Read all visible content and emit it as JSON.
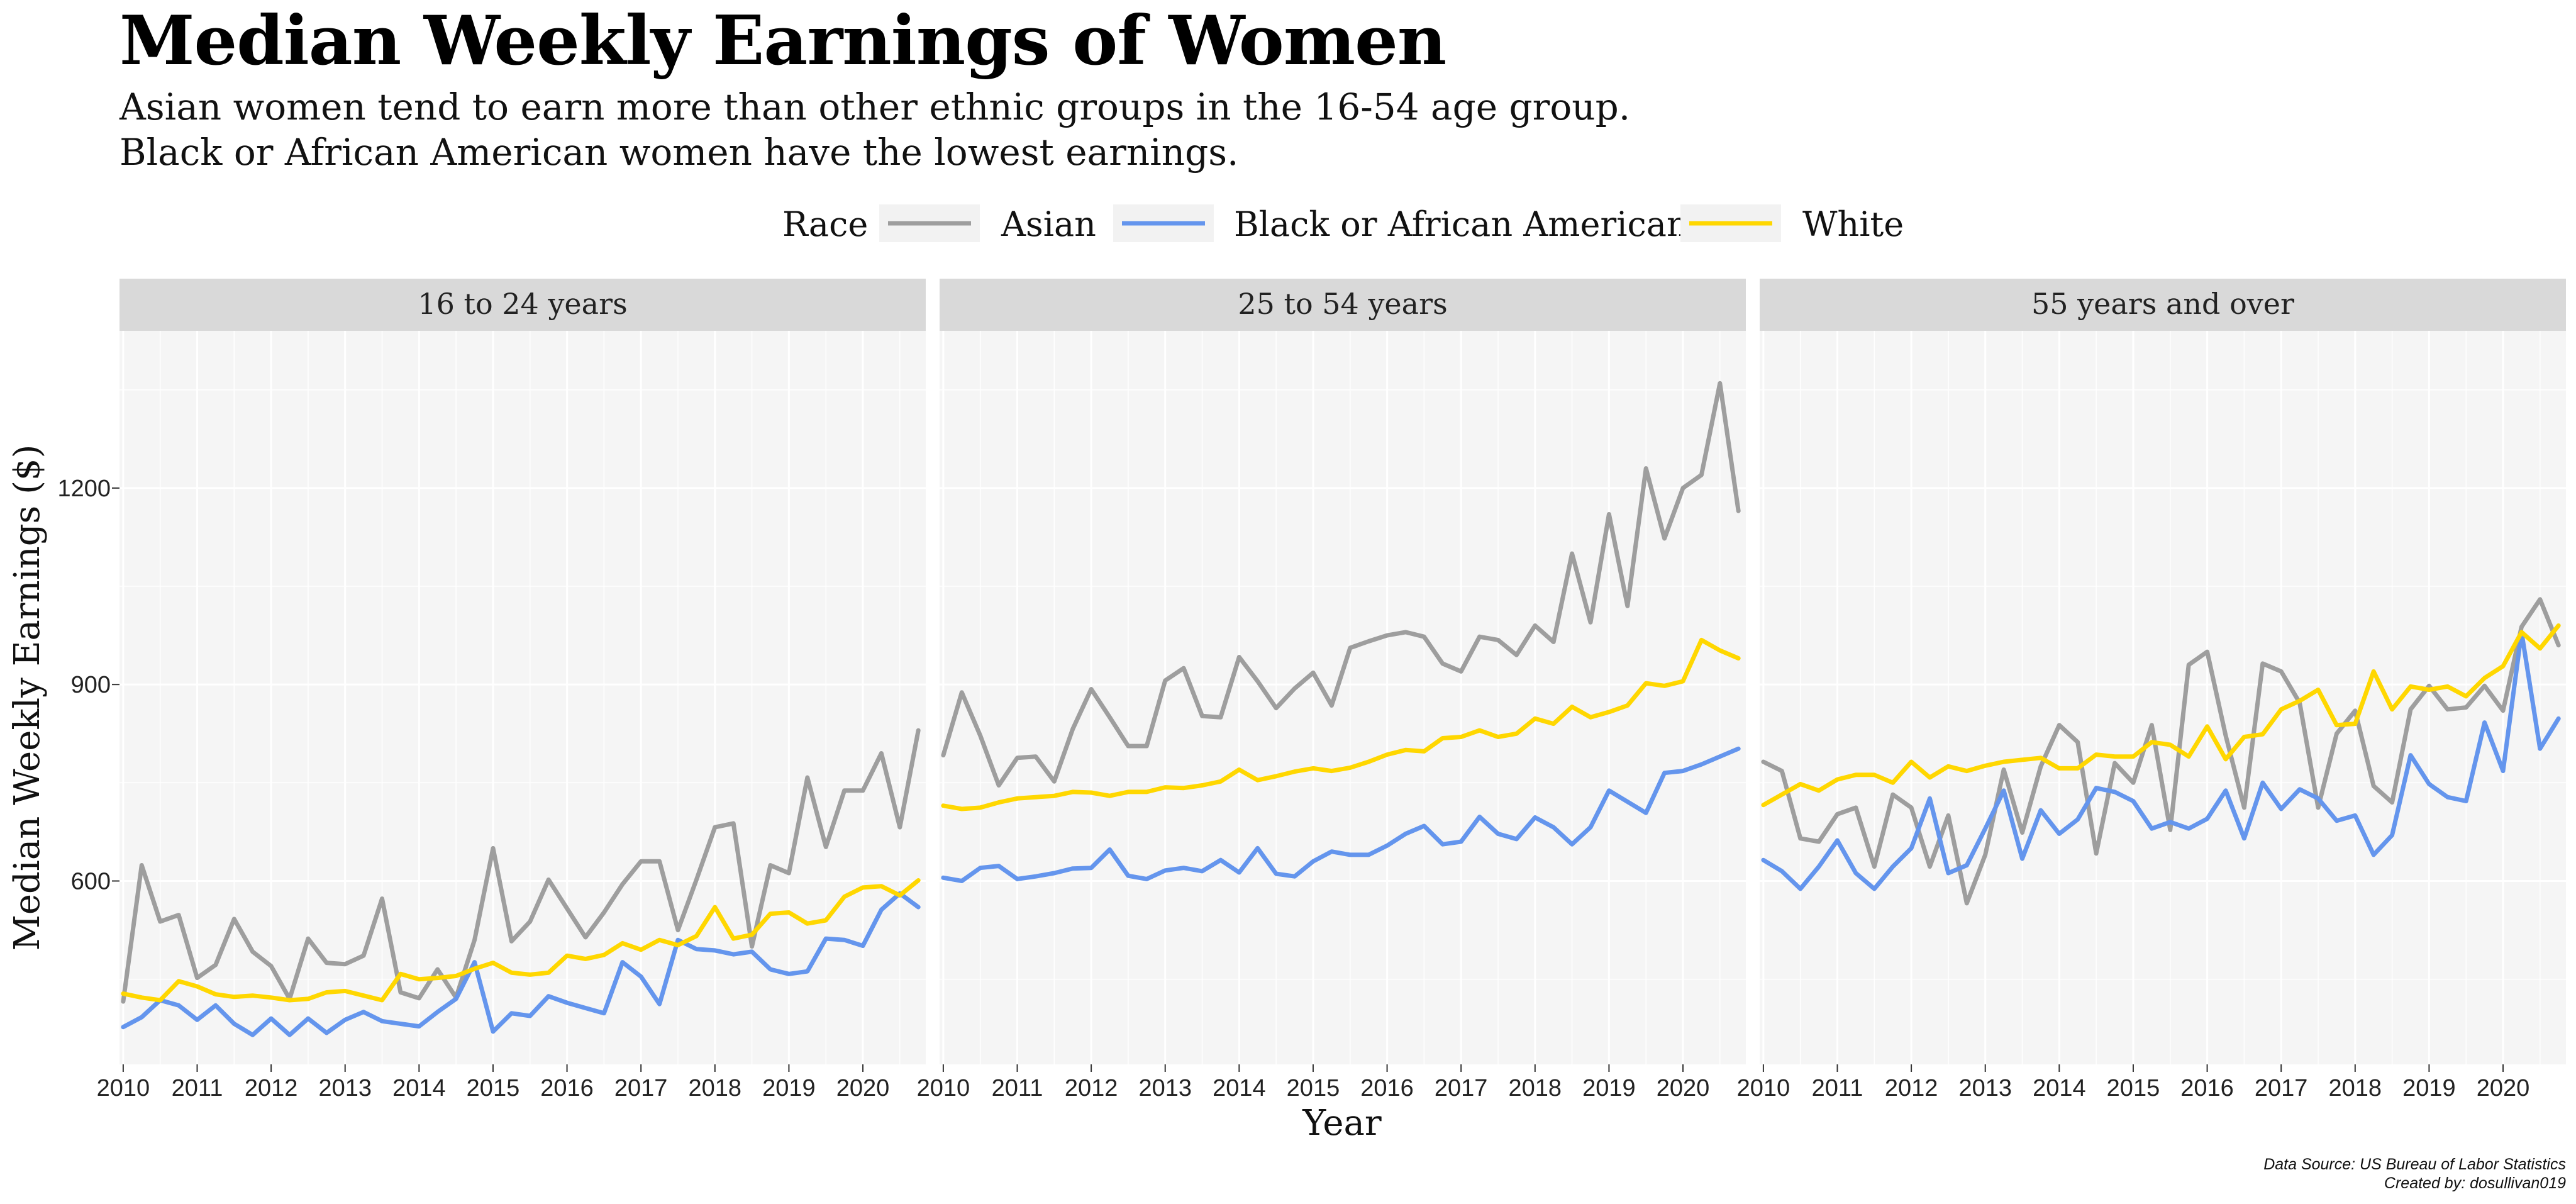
{
  "title": "Median Weekly Earnings of Women",
  "subtitle_line1": "Asian women tend to earn more than other ethnic groups in the 16-54 age group.",
  "subtitle_line2": "Black or African American women have the lowest earnings.",
  "caption_line1": "Data Source: US Bureau of Labor Statistics",
  "caption_line2": "Created by: dosullivan019",
  "legend": {
    "title": "Race",
    "placement": "top",
    "entries": [
      "Asian",
      "Black or African American",
      "White"
    ]
  },
  "colors": {
    "Asian": "#9e9e9e",
    "Black or African American": "#6495ed",
    "White": "#ffd700",
    "panel_background": "#f5f5f5",
    "strip_background": "#d9d9d9",
    "grid": "#ffffff"
  },
  "chart_data": {
    "type": "line",
    "xlabel": "Year",
    "ylabel": "Median Weekly Earnings ($)",
    "x_ticks": [
      "2010",
      "2011",
      "2012",
      "2013",
      "2014",
      "2015",
      "2016",
      "2017",
      "2018",
      "2019",
      "2020"
    ],
    "y_ticks": [
      600,
      900,
      1200
    ],
    "xlim": [
      2009.95,
      2020.85
    ],
    "ylim": [
      320,
      1440
    ],
    "grid": true,
    "x_note": "x values are years (quarterly observations, 2010 Q1 to 2020 Q4)",
    "panels": [
      {
        "title": "16 to 24 years",
        "series": [
          {
            "name": "Asian",
            "x": [
              2010,
              2010.25,
              2010.5,
              2010.75,
              2011,
              2011.25,
              2011.5,
              2011.75,
              2012,
              2012.25,
              2012.5,
              2012.75,
              2013,
              2013.25,
              2013.5,
              2013.75,
              2014,
              2014.25,
              2014.5,
              2014.75,
              2015,
              2015.25,
              2015.5,
              2015.75,
              2016,
              2016.25,
              2016.5,
              2016.75,
              2017,
              2017.25,
              2017.5,
              2017.75,
              2018,
              2018.25,
              2018.5,
              2018.75,
              2019,
              2019.25,
              2019.5,
              2019.75,
              2020,
              2020.25,
              2020.5,
              2020.75
            ],
            "values": [
              416,
              624,
              538,
              548,
              452,
              472,
              542,
              492,
              470,
              420,
              512,
              475,
              473,
              486,
              573,
              430,
              421,
              465,
              422,
              510,
              650,
              508,
              538,
              602,
              558,
              514,
              552,
              595,
              630,
              630,
              525,
              602,
              682,
              688,
              500,
              624,
              612,
              758,
              652,
              738,
              738,
              795,
              682,
              830
            ]
          },
          {
            "name": "Black or African American",
            "x": [
              2010,
              2010.25,
              2010.5,
              2010.75,
              2011,
              2011.25,
              2011.5,
              2011.75,
              2012,
              2012.25,
              2012.5,
              2012.75,
              2013,
              2013.25,
              2013.5,
              2013.75,
              2014,
              2014.25,
              2014.5,
              2014.75,
              2015,
              2015.25,
              2015.5,
              2015.75,
              2016,
              2016.25,
              2016.5,
              2016.75,
              2017,
              2017.25,
              2017.5,
              2017.75,
              2018,
              2018.25,
              2018.5,
              2018.75,
              2019,
              2019.25,
              2019.5,
              2019.75,
              2020,
              2020.25,
              2020.5,
              2020.75
            ],
            "values": [
              377,
              392,
              418,
              410,
              388,
              410,
              382,
              365,
              390,
              365,
              390,
              368,
              388,
              400,
              386,
              382,
              378,
              400,
              420,
              476,
              370,
              398,
              394,
              424,
              414,
              406,
              398,
              476,
              454,
              412,
              510,
              496,
              494,
              488,
              492,
              465,
              458,
              462,
              512,
              510,
              501,
              556,
              581,
              560
            ]
          },
          {
            "name": "White",
            "x": [
              2010,
              2010.25,
              2010.5,
              2010.75,
              2011,
              2011.25,
              2011.5,
              2011.75,
              2012,
              2012.25,
              2012.5,
              2012.75,
              2013,
              2013.25,
              2013.5,
              2013.75,
              2014,
              2014.25,
              2014.5,
              2014.75,
              2015,
              2015.25,
              2015.5,
              2015.75,
              2016,
              2016.25,
              2016.5,
              2016.75,
              2017,
              2017.25,
              2017.5,
              2017.75,
              2018,
              2018.25,
              2018.5,
              2018.75,
              2019,
              2019.25,
              2019.5,
              2019.75,
              2020,
              2020.25,
              2020.5,
              2020.75
            ],
            "values": [
              428,
              422,
              418,
              447,
              439,
              427,
              423,
              425,
              422,
              418,
              420,
              430,
              432,
              425,
              418,
              458,
              450,
              452,
              455,
              466,
              475,
              460,
              457,
              460,
              486,
              481,
              487,
              505,
              495,
              510,
              502,
              516,
              560,
              512,
              518,
              550,
              552,
              535,
              540,
              576,
              590,
              592,
              578,
              601
            ]
          }
        ]
      },
      {
        "title": "25 to 54 years",
        "series": [
          {
            "name": "Asian",
            "x": [
              2010,
              2010.25,
              2010.5,
              2010.75,
              2011,
              2011.25,
              2011.5,
              2011.75,
              2012,
              2012.25,
              2012.5,
              2012.75,
              2013,
              2013.25,
              2013.5,
              2013.75,
              2014,
              2014.25,
              2014.5,
              2014.75,
              2015,
              2015.25,
              2015.5,
              2015.75,
              2016,
              2016.25,
              2016.5,
              2016.75,
              2017,
              2017.25,
              2017.5,
              2017.75,
              2018,
              2018.25,
              2018.5,
              2018.75,
              2019,
              2019.25,
              2019.5,
              2019.75,
              2020,
              2020.25,
              2020.5,
              2020.75
            ],
            "values": [
              792,
              888,
              822,
              746,
              788,
              790,
              752,
              832,
              893,
              850,
              806,
              806,
              906,
              925,
              852,
              850,
              942,
              905,
              864,
              894,
              918,
              868,
              956,
              966,
              975,
              980,
              973,
              932,
              920,
              973,
              968,
              945,
              990,
              965,
              1100,
              995,
              1160,
              1020,
              1230,
              1123,
              1200,
              1220,
              1360,
              1165
            ]
          },
          {
            "name": "Black or African American",
            "x": [
              2010,
              2010.25,
              2010.5,
              2010.75,
              2011,
              2011.25,
              2011.5,
              2011.75,
              2012,
              2012.25,
              2012.5,
              2012.75,
              2013,
              2013.25,
              2013.5,
              2013.75,
              2014,
              2014.25,
              2014.5,
              2014.75,
              2015,
              2015.25,
              2015.5,
              2015.75,
              2016,
              2016.25,
              2016.5,
              2016.75,
              2017,
              2017.25,
              2017.5,
              2017.75,
              2018,
              2018.25,
              2018.5,
              2018.75,
              2019,
              2019.25,
              2019.5,
              2019.75,
              2020,
              2020.25,
              2020.5,
              2020.75
            ],
            "values": [
              605,
              600,
              620,
              623,
              603,
              607,
              612,
              619,
              620,
              648,
              608,
              603,
              616,
              620,
              615,
              632,
              613,
              650,
              611,
              607,
              630,
              645,
              640,
              640,
              654,
              672,
              684,
              656,
              660,
              698,
              672,
              664,
              697,
              682,
              656,
              682,
              738,
              721,
              704,
              765,
              768,
              778,
              790,
              802
            ]
          },
          {
            "name": "White",
            "x": [
              2010,
              2010.25,
              2010.5,
              2010.75,
              2011,
              2011.25,
              2011.5,
              2011.75,
              2012,
              2012.25,
              2012.5,
              2012.75,
              2013,
              2013.25,
              2013.5,
              2013.75,
              2014,
              2014.25,
              2014.5,
              2014.75,
              2015,
              2015.25,
              2015.5,
              2015.75,
              2016,
              2016.25,
              2016.5,
              2016.75,
              2017,
              2017.25,
              2017.5,
              2017.75,
              2018,
              2018.25,
              2018.5,
              2018.75,
              2019,
              2019.25,
              2019.5,
              2019.75,
              2020,
              2020.25,
              2020.5,
              2020.75
            ],
            "values": [
              715,
              710,
              712,
              720,
              726,
              728,
              730,
              736,
              735,
              730,
              736,
              736,
              743,
              742,
              746,
              752,
              770,
              754,
              760,
              767,
              772,
              768,
              773,
              782,
              793,
              800,
              798,
              818,
              820,
              830,
              820,
              825,
              848,
              840,
              866,
              850,
              858,
              868,
              902,
              898,
              905,
              968,
              952,
              940
            ]
          }
        ]
      },
      {
        "title": "55 years and over",
        "series": [
          {
            "name": "Asian",
            "x": [
              2010,
              2010.25,
              2010.5,
              2010.75,
              2011,
              2011.25,
              2011.5,
              2011.75,
              2012,
              2012.25,
              2012.5,
              2012.75,
              2013,
              2013.25,
              2013.5,
              2013.75,
              2014,
              2014.25,
              2014.5,
              2014.75,
              2015,
              2015.25,
              2015.5,
              2015.75,
              2016,
              2016.25,
              2016.5,
              2016.75,
              2017,
              2017.25,
              2017.5,
              2017.75,
              2018,
              2018.25,
              2018.5,
              2018.75,
              2019,
              2019.25,
              2019.5,
              2019.75,
              2020,
              2020.25,
              2020.5,
              2020.75
            ],
            "values": [
              782,
              768,
              665,
              660,
              702,
              712,
              622,
              732,
              712,
              622,
              700,
              566,
              640,
              770,
              674,
              775,
              838,
              812,
              642,
              780,
              750,
              838,
              678,
              930,
              950,
              822,
              712,
              932,
              920,
              872,
              712,
              825,
              860,
              745,
              720,
              862,
              898,
              862,
              865,
              898,
              860,
              988,
              1030,
              960
            ]
          },
          {
            "name": "Black or African American",
            "x": [
              2010,
              2010.25,
              2010.5,
              2010.75,
              2011,
              2011.25,
              2011.5,
              2011.75,
              2012,
              2012.25,
              2012.5,
              2012.75,
              2013,
              2013.25,
              2013.5,
              2013.75,
              2014,
              2014.25,
              2014.5,
              2014.75,
              2015,
              2015.25,
              2015.5,
              2015.75,
              2016,
              2016.25,
              2016.5,
              2016.75,
              2017,
              2017.25,
              2017.5,
              2017.75,
              2018,
              2018.25,
              2018.5,
              2018.75,
              2019,
              2019.25,
              2019.5,
              2019.75,
              2020,
              2020.25,
              2020.5,
              2020.75
            ],
            "values": [
              632,
              615,
              588,
              622,
              662,
              612,
              588,
              622,
              650,
              726,
              612,
              624,
              680,
              738,
              634,
              708,
              672,
              694,
              742,
              736,
              722,
              680,
              690,
              680,
              695,
              738,
              665,
              750,
              710,
              740,
              726,
              692,
              700,
              640,
              670,
              792,
              748,
              728,
              722,
              842,
              768,
              980,
              802,
              848
            ]
          },
          {
            "name": "White",
            "x": [
              2010,
              2010.25,
              2010.5,
              2010.75,
              2011,
              2011.25,
              2011.5,
              2011.75,
              2012,
              2012.25,
              2012.5,
              2012.75,
              2013,
              2013.25,
              2013.5,
              2013.75,
              2014,
              2014.25,
              2014.5,
              2014.75,
              2015,
              2015.25,
              2015.5,
              2015.75,
              2016,
              2016.25,
              2016.5,
              2016.75,
              2017,
              2017.25,
              2017.5,
              2017.75,
              2018,
              2018.25,
              2018.5,
              2018.75,
              2019,
              2019.25,
              2019.5,
              2019.75,
              2020,
              2020.25,
              2020.5,
              2020.75
            ],
            "values": [
              716,
              732,
              748,
              738,
              755,
              762,
              762,
              750,
              782,
              758,
              775,
              768,
              776,
              782,
              785,
              788,
              772,
              772,
              793,
              790,
              790,
              812,
              808,
              790,
              836,
              786,
              820,
              824,
              862,
              875,
              892,
              838,
              840,
              920,
              862,
              897,
              892,
              897,
              882,
              910,
              928,
              980,
              955,
              990
            ]
          }
        ]
      }
    ]
  }
}
